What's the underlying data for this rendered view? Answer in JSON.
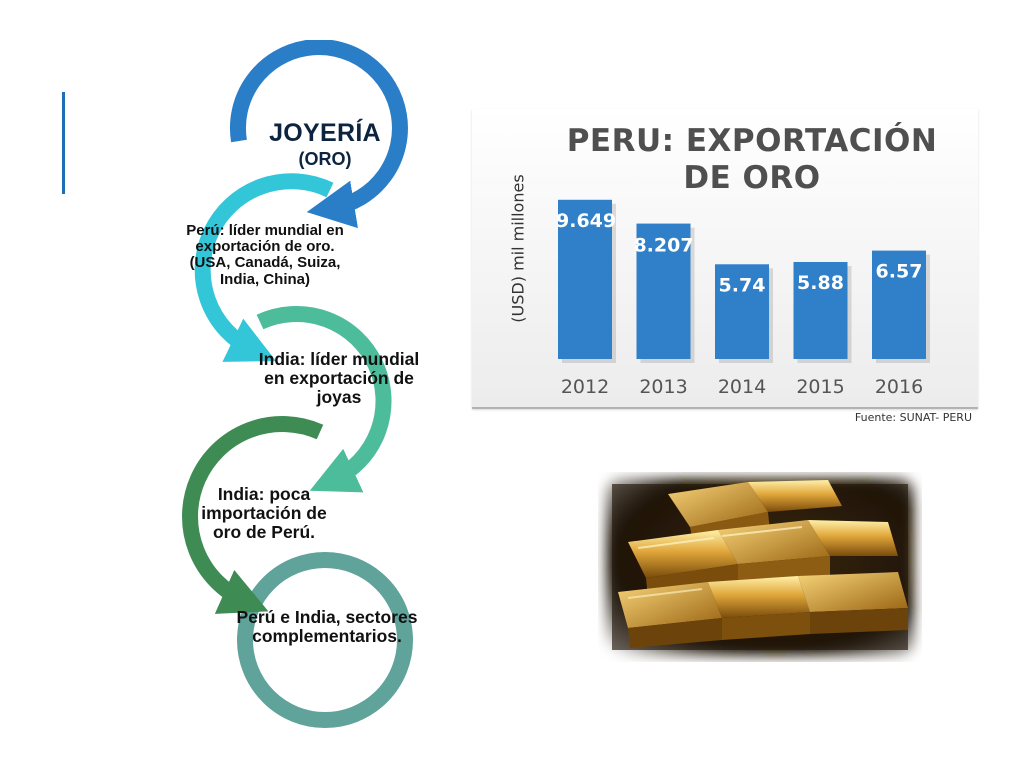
{
  "diagram": {
    "steps": [
      {
        "title": "JOYERÍA",
        "subtitle": "(ORO)",
        "color": "#2a7ec8"
      },
      {
        "text": "Perú: líder mundial en exportación de oro. (USA, Canadá, Suiza, India, China)",
        "color": "#33c6d9"
      },
      {
        "text": "India: líder mundial en exportación de joyas",
        "color": "#4cbc9b"
      },
      {
        "text": "India: poca importación de oro de Perú.",
        "color": "#3f8b54"
      },
      {
        "text": "Perú e India, sectores complementarios.",
        "color": "#5fa39b"
      }
    ]
  },
  "chart_data": {
    "type": "bar",
    "title": "PERU: EXPORTACIÓN DE ORO",
    "ylabel": "(USD) mil millones",
    "categories": [
      "2012",
      "2013",
      "2014",
      "2015",
      "2016"
    ],
    "values": [
      9.649,
      8.207,
      5.74,
      5.88,
      6.57
    ],
    "value_labels": [
      "9.649",
      "8.207",
      "5.74",
      "5.88",
      "6.57"
    ],
    "bar_color": "#2f7fc9",
    "grid": false,
    "legend": "none"
  },
  "source": "Fuente: SUNAT- PERU"
}
